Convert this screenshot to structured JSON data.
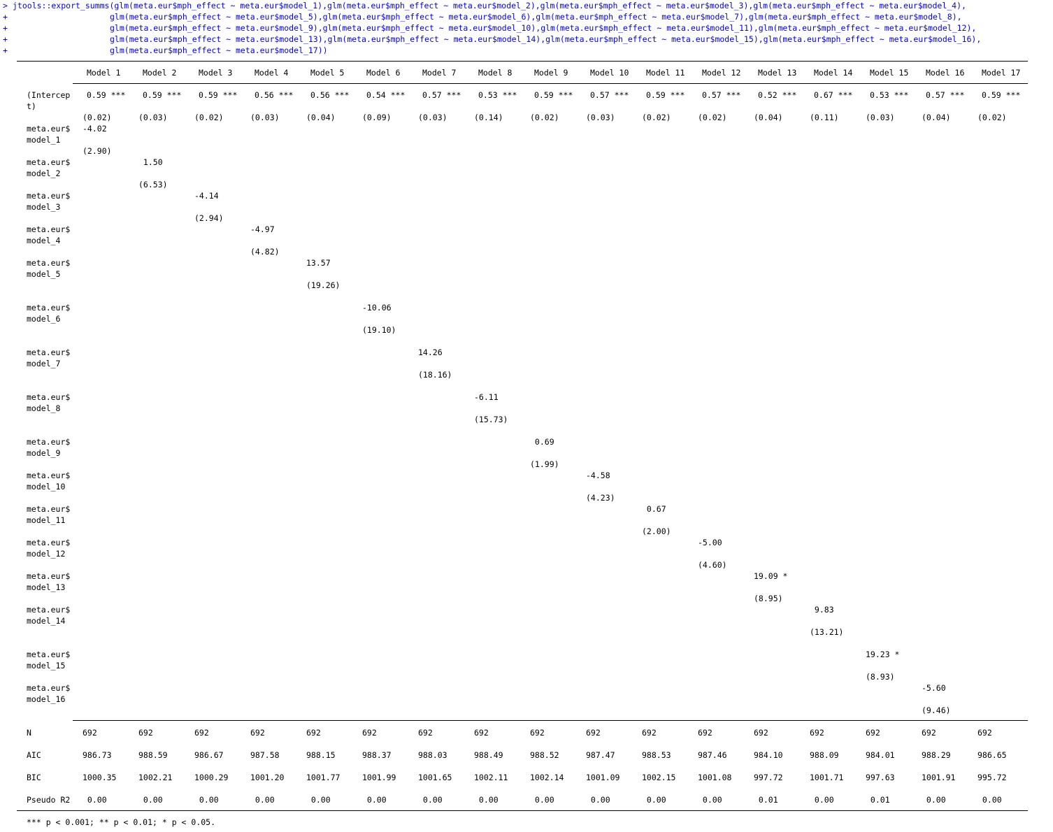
{
  "console": {
    "command_lines": [
      {
        "prompt": ">",
        "text": "jtools::export_summs(glm(meta.eur$mph_effect ~ meta.eur$model_1),glm(meta.eur$mph_effect ~ meta.eur$model_2),glm(meta.eur$mph_effect ~ meta.eur$model_3),glm(meta.eur$mph_effect ~ meta.eur$model_4),"
      },
      {
        "prompt": "+",
        "text": "glm(meta.eur$mph_effect ~ meta.eur$model_5),glm(meta.eur$mph_effect ~ meta.eur$model_6),glm(meta.eur$mph_effect ~ meta.eur$model_7),glm(meta.eur$mph_effect ~ meta.eur$model_8),"
      },
      {
        "prompt": "+",
        "text": "glm(meta.eur$mph_effect ~ meta.eur$model_9),glm(meta.eur$mph_effect ~ meta.eur$model_10),glm(meta.eur$mph_effect ~ meta.eur$model_11),glm(meta.eur$mph_effect ~ meta.eur$model_12),"
      },
      {
        "prompt": "+",
        "text": "glm(meta.eur$mph_effect ~ meta.eur$model_13),glm(meta.eur$mph_effect ~ meta.eur$model_14),glm(meta.eur$mph_effect ~ meta.eur$model_15),glm(meta.eur$mph_effect ~ meta.eur$model_16),"
      },
      {
        "prompt": "+",
        "text": "glm(meta.eur$mph_effect ~ meta.eur$model_17))"
      }
    ],
    "command_color": "#0000ff"
  },
  "table": {
    "headers": [
      "Model 1",
      "Model 2",
      "Model 3",
      "Model 4",
      "Model 5",
      "Model 6",
      "Model 7",
      "Model 8",
      "Model 9",
      "Model 10",
      "Model 11",
      "Model 12",
      "Model 13",
      "Model 14",
      "Model 15",
      "Model 16",
      "Model 17"
    ],
    "intercept": {
      "label": [
        "(Intercep",
        "t)"
      ],
      "estimates": [
        "0.59 ***",
        "0.59 ***",
        "0.59 ***",
        "0.56 ***",
        "0.56 ***",
        "0.54 ***",
        "0.57 ***",
        "0.53 ***",
        "0.59 ***",
        "0.57 ***",
        "0.59 ***",
        "0.57 ***",
        "0.52 ***",
        "0.67 ***",
        "0.53 ***",
        "0.57 ***",
        "0.59 ***"
      ],
      "std_errors": [
        "(0.02)",
        "(0.03)",
        "(0.02)",
        "(0.03)",
        "(0.04)",
        "(0.09)",
        "(0.03)",
        "(0.14)",
        "(0.02)",
        "(0.03)",
        "(0.02)",
        "(0.02)",
        "(0.04)",
        "(0.11)",
        "(0.03)",
        "(0.04)",
        "(0.02)"
      ]
    },
    "coefficients": [
      {
        "label": [
          "meta.eur$",
          "model_1"
        ],
        "estimate": "-4.02",
        "se": "(2.90)"
      },
      {
        "label": [
          "meta.eur$",
          "model_2"
        ],
        "estimate": " 1.50",
        "se": "(6.53)"
      },
      {
        "label": [
          "meta.eur$",
          "model_3"
        ],
        "estimate": "-4.14",
        "se": "(2.94)"
      },
      {
        "label": [
          "meta.eur$",
          "model_4"
        ],
        "estimate": "-4.97",
        "se": "(4.82)"
      },
      {
        "label": [
          "meta.eur$",
          "model_5"
        ],
        "estimate": "13.57",
        "se": "(19.26)"
      },
      {
        "label": [
          "meta.eur$",
          "model_6"
        ],
        "estimate": "-10.06",
        "se": "(19.10)"
      },
      {
        "label": [
          "meta.eur$",
          "model_7"
        ],
        "estimate": "14.26",
        "se": "(18.16)"
      },
      {
        "label": [
          "meta.eur$",
          "model_8"
        ],
        "estimate": "-6.11",
        "se": "(15.73)"
      },
      {
        "label": [
          "meta.eur$",
          "model_9"
        ],
        "estimate": " 0.69",
        "se": "(1.99)"
      },
      {
        "label": [
          "meta.eur$",
          "model_10"
        ],
        "estimate": "-4.58",
        "se": "(4.23)"
      },
      {
        "label": [
          "meta.eur$",
          "model_11"
        ],
        "estimate": " 0.67",
        "se": "(2.00)"
      },
      {
        "label": [
          "meta.eur$",
          "model_12"
        ],
        "estimate": "-5.00",
        "se": "(4.60)"
      },
      {
        "label": [
          "meta.eur$",
          "model_13"
        ],
        "estimate": "19.09 *",
        "se": "(8.95)"
      },
      {
        "label": [
          "meta.eur$",
          "model_14"
        ],
        "estimate": " 9.83",
        "se": "(13.21)"
      },
      {
        "label": [
          "meta.eur$",
          "model_15"
        ],
        "estimate": "19.23 *",
        "se": "(8.93)"
      },
      {
        "label": [
          "meta.eur$",
          "model_16"
        ],
        "estimate": "-5.60",
        "se": "(9.46)"
      }
    ],
    "stats": [
      {
        "label": "N",
        "values": [
          "692",
          "692",
          "692",
          "692",
          "692",
          "692",
          "692",
          "692",
          "692",
          "692",
          "692",
          "692",
          "692",
          "692",
          "692",
          "692",
          "692"
        ]
      },
      {
        "label": "AIC",
        "values": [
          "986.73",
          "988.59",
          "986.67",
          "987.58",
          "988.15",
          "988.37",
          "988.03",
          "988.49",
          "988.52",
          "987.47",
          "988.53",
          "987.46",
          "984.10",
          "988.09",
          "984.01",
          "988.29",
          "986.65"
        ]
      },
      {
        "label": "BIC",
        "values": [
          "1000.35",
          "1002.21",
          "1000.29",
          "1001.20",
          "1001.77",
          "1001.99",
          "1001.65",
          "1002.11",
          "1002.14",
          "1001.09",
          "1002.15",
          "1001.08",
          "997.72",
          "1001.71",
          "997.63",
          "1001.91",
          "995.72"
        ]
      },
      {
        "label": "Pseudo R2",
        "values": [
          " 0.00",
          " 0.00",
          " 0.00",
          " 0.00",
          " 0.00",
          " 0.00",
          " 0.00",
          " 0.00",
          " 0.00",
          " 0.00",
          " 0.00",
          " 0.00",
          " 0.01",
          " 0.00",
          " 0.01",
          " 0.00",
          " 0.00"
        ]
      }
    ],
    "footnote": "*** p < 0.001; ** p < 0.01; * p < 0.05."
  }
}
